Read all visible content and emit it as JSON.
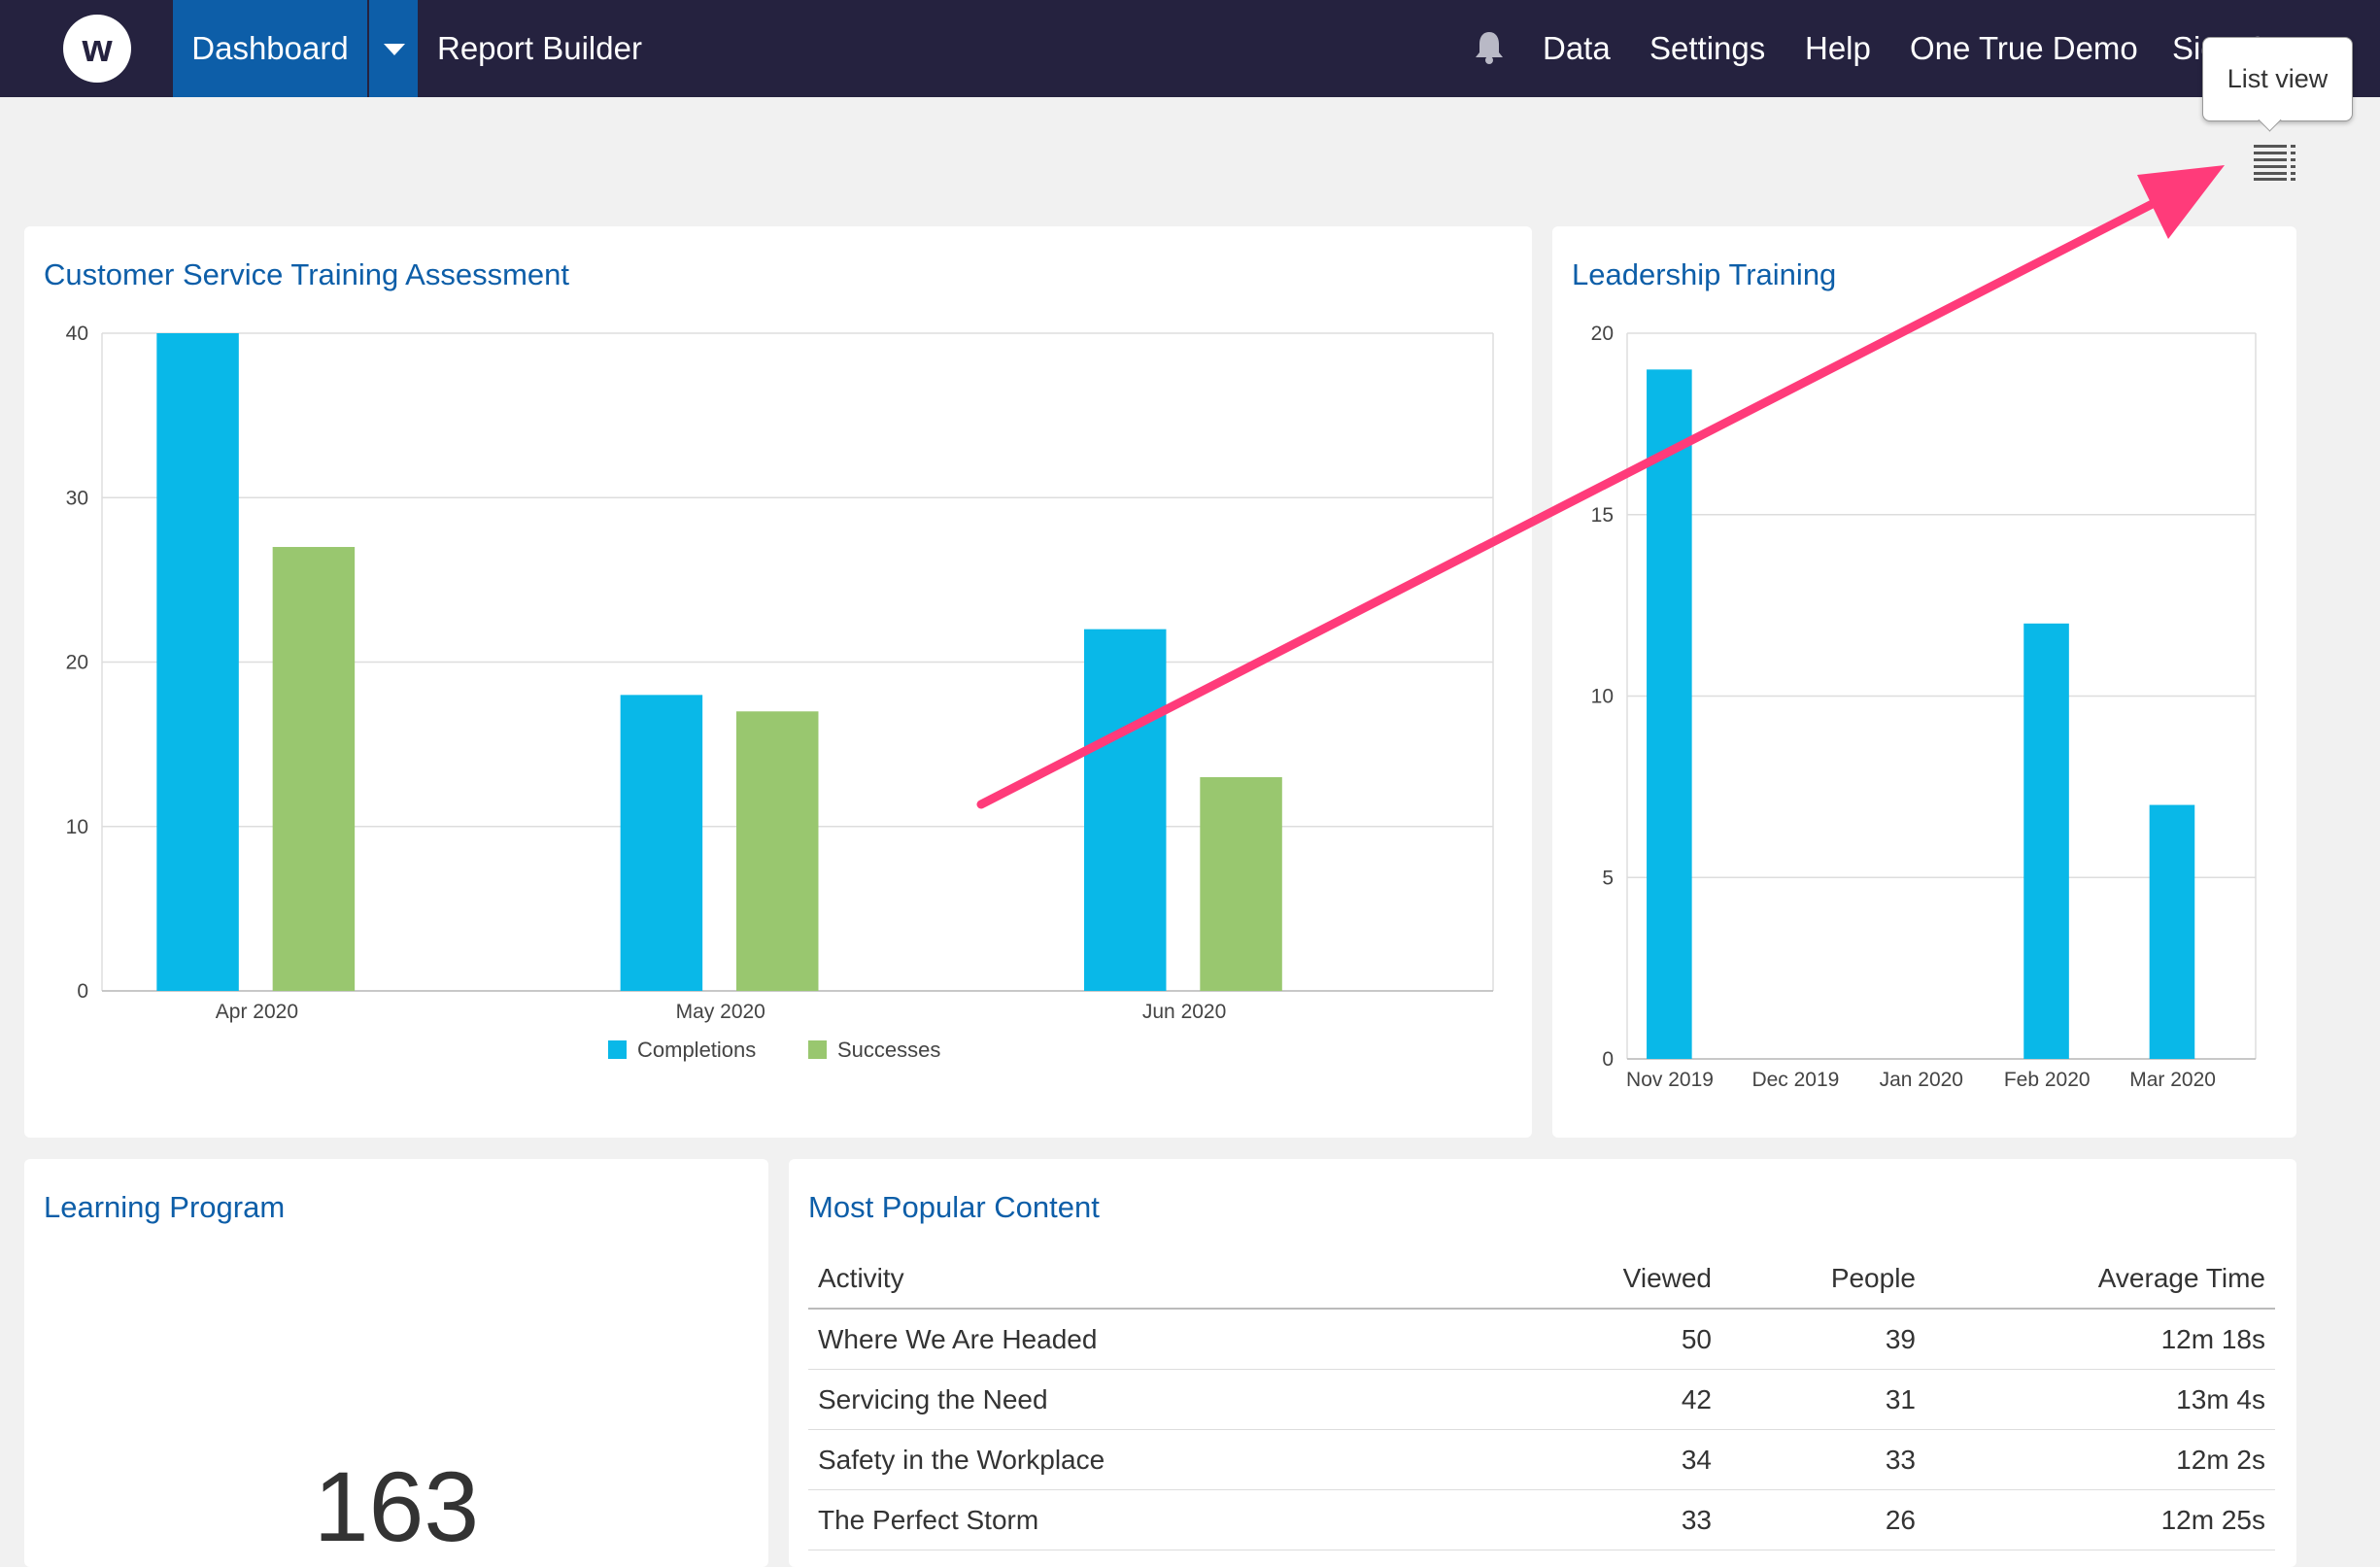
{
  "nav": {
    "logo_letter": "w",
    "dashboard_label": "Dashboard",
    "report_builder_label": "Report Builder",
    "links": [
      "Data",
      "Settings",
      "Help",
      "One True Demo",
      "Sign Out"
    ]
  },
  "toolbar": {
    "tooltip_text": "List view"
  },
  "cards": {
    "cst_title": "Customer Service Training Assessment",
    "leadership_title": "Leadership Training",
    "learning_title": "Learning Program",
    "learning_value": "163",
    "popular_title": "Most Popular Content"
  },
  "popular_table": {
    "headers": [
      "Activity",
      "Viewed",
      "People",
      "Average Time"
    ],
    "rows": [
      [
        "Where We Are Headed",
        "50",
        "39",
        "12m 18s"
      ],
      [
        "Servicing the Need",
        "42",
        "31",
        "13m 4s"
      ],
      [
        "Safety in the Workplace",
        "34",
        "33",
        "12m 2s"
      ],
      [
        "The Perfect Storm",
        "33",
        "26",
        "12m 25s"
      ]
    ]
  },
  "colors": {
    "completions": "#09b8e8",
    "successes": "#99c76f",
    "annotation_arrow": "#ff3b7a",
    "nav_bg": "#25223f",
    "accent": "#0d5ea8"
  },
  "chart_data": [
    {
      "type": "bar",
      "title": "Customer Service Training Assessment",
      "categories": [
        "Apr 2020",
        "May 2020",
        "Jun 2020"
      ],
      "series": [
        {
          "name": "Completions",
          "values": [
            40,
            18,
            22
          ]
        },
        {
          "name": "Successes",
          "values": [
            27,
            17,
            13
          ]
        }
      ],
      "ylim": [
        0,
        40
      ],
      "yticks": [
        0,
        10,
        20,
        30,
        40
      ],
      "grid": true,
      "legend": "bottom"
    },
    {
      "type": "bar",
      "title": "Leadership Training",
      "categories": [
        "Nov 2019",
        "Dec 2019",
        "Jan 2020",
        "Feb 2020",
        "Mar 2020"
      ],
      "series": [
        {
          "values": [
            19,
            0,
            0,
            12,
            7
          ]
        }
      ],
      "ylim": [
        0,
        20
      ],
      "yticks": [
        0,
        5,
        10,
        15,
        20
      ],
      "grid": true
    }
  ]
}
